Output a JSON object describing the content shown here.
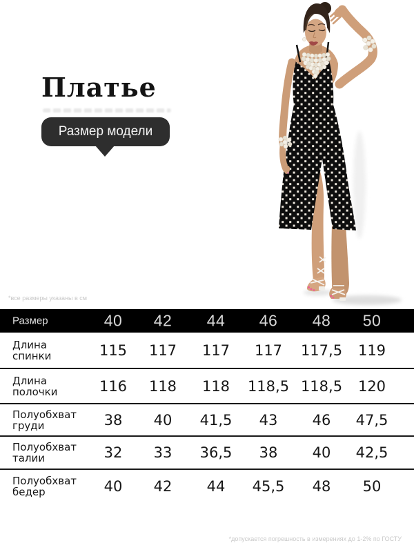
{
  "page": {
    "background": "#ffffff"
  },
  "header": {
    "title": "Платье",
    "badge": {
      "label": "Размер модели",
      "bg": "#2e2e2e",
      "text_color": "#f2f2f2"
    }
  },
  "notes": {
    "units": "*все размеры указаны в см",
    "tolerance": "*допускается погрешность в измерениях до 1-2% по ГОСТУ"
  },
  "model_photo": {
    "description": "model in black polka-dot midi slip dress with front slit, pearl necklace, pearl bracelets, white lace-up heeled sandals",
    "dress_color": "#0e0e0e",
    "dot_color": "#ece6dc",
    "skin_color": "#cf9f7a",
    "hair_color": "#33241b",
    "pearl_color": "#f4f0e7",
    "nail_color": "#ef5e95",
    "shadow_color": "#dedede"
  },
  "size_table": {
    "header_label": "Размер",
    "header_bg": "#000000",
    "divider_color": "#191919",
    "sizes": [
      "40",
      "42",
      "44",
      "46",
      "48",
      "50"
    ],
    "rows": [
      {
        "label": [
          "Длина",
          "спинки"
        ],
        "values": [
          "115",
          "117",
          "117",
          "117",
          "117,5",
          "119"
        ]
      },
      {
        "label": [
          "Длина",
          "полочки"
        ],
        "values": [
          "116",
          "118",
          "118",
          "118,5",
          "118,5",
          "120"
        ]
      },
      {
        "label": [
          "Полуобхват",
          "груди"
        ],
        "values": [
          "38",
          "40",
          "41,5",
          "43",
          "46",
          "47,5"
        ]
      },
      {
        "label": [
          "Полуобхват",
          "талии"
        ],
        "values": [
          "32",
          "33",
          "36,5",
          "38",
          "40",
          "42,5"
        ]
      },
      {
        "label": [
          "Полуобхват",
          "бедер"
        ],
        "values": [
          "40",
          "42",
          "44",
          "45,5",
          "48",
          "50"
        ]
      }
    ]
  }
}
